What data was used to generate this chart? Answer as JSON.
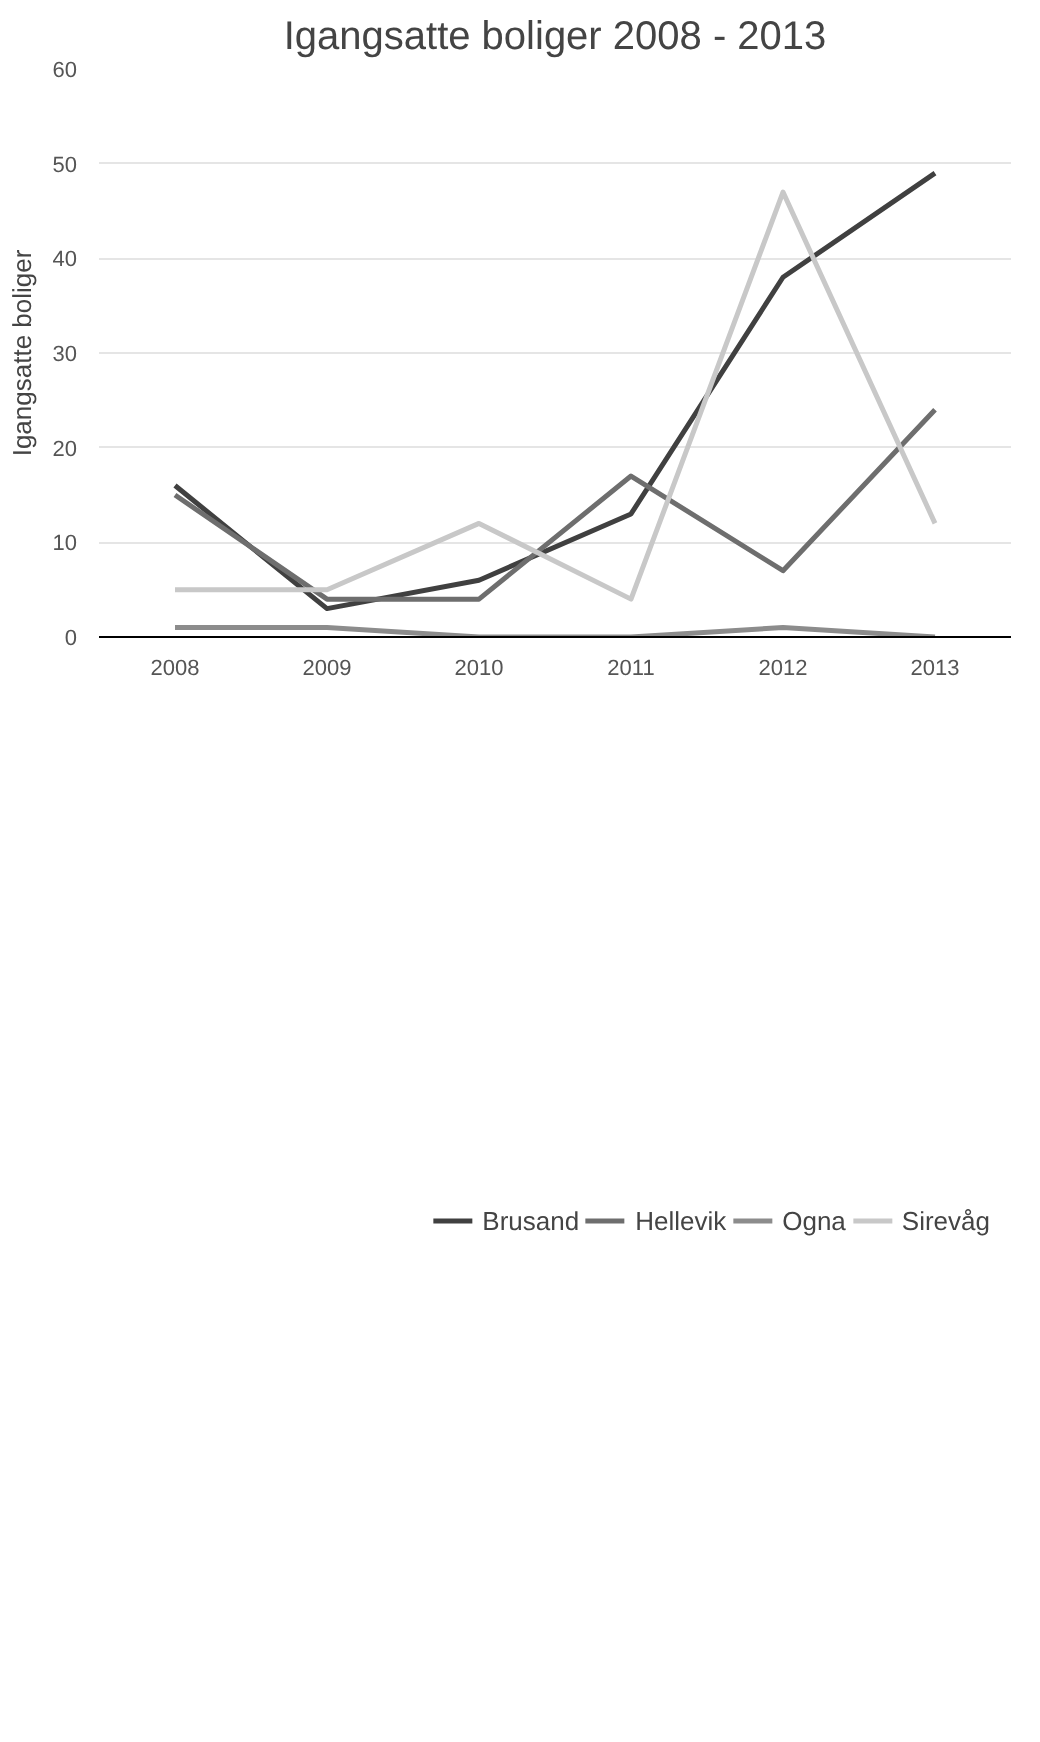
{
  "chart_data": {
    "type": "line",
    "title": "Igangsatte boliger 2008 - 2013",
    "ylabel": "Igangsatte boliger",
    "categories": [
      "2008",
      "2009",
      "2010",
      "2011",
      "2012",
      "2013"
    ],
    "series": [
      {
        "name": "Brusand",
        "color": "#404040",
        "values": [
          16,
          3,
          6,
          13,
          38,
          49
        ]
      },
      {
        "name": "Hellevik",
        "color": "#6e6e6e",
        "values": [
          15,
          4,
          4,
          17,
          7,
          24
        ]
      },
      {
        "name": "Ogna",
        "color": "#8c8c8c",
        "values": [
          1,
          1,
          0,
          0,
          1,
          0
        ]
      },
      {
        "name": "Sirevåg",
        "color": "#c8c8c8",
        "values": [
          5,
          5,
          12,
          4,
          47,
          12
        ]
      }
    ],
    "ylim": [
      0,
      60
    ],
    "yticks": [
      0,
      10,
      20,
      30,
      40,
      50,
      60
    ],
    "grid": "y",
    "legend": "bottom",
    "marker": "none",
    "line_style": "solid"
  }
}
